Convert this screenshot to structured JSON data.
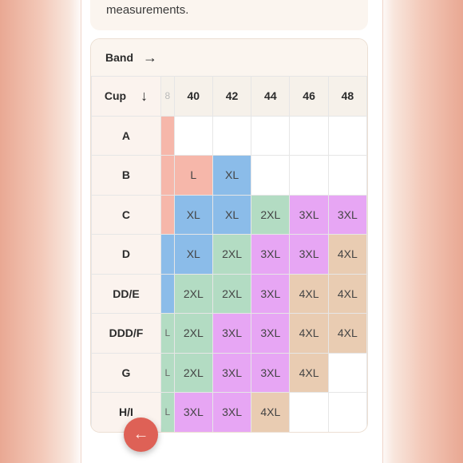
{
  "intro": {
    "text": "measurements."
  },
  "band": {
    "label": "Band",
    "arrow": "→"
  },
  "cup": {
    "label": "Cup",
    "arrow": "↓"
  },
  "columns": [
    "40",
    "42",
    "44",
    "46",
    "48"
  ],
  "cut_column_header": "8",
  "rows": [
    {
      "cup": "A",
      "cut": "",
      "cells": [
        "",
        "",
        "",
        "",
        ""
      ]
    },
    {
      "cup": "B",
      "cut": "",
      "cells": [
        "L",
        "XL",
        "",
        "",
        ""
      ]
    },
    {
      "cup": "C",
      "cut": "",
      "cells": [
        "XL",
        "XL",
        "2XL",
        "3XL",
        "3XL"
      ]
    },
    {
      "cup": "D",
      "cut": "",
      "cells": [
        "XL",
        "2XL",
        "3XL",
        "3XL",
        "4XL"
      ]
    },
    {
      "cup": "DD/E",
      "cut": "",
      "cells": [
        "2XL",
        "2XL",
        "3XL",
        "4XL",
        "4XL"
      ]
    },
    {
      "cup": "DDD/F",
      "cut": "L",
      "cells": [
        "2XL",
        "3XL",
        "3XL",
        "4XL",
        "4XL"
      ]
    },
    {
      "cup": "G",
      "cut": "L",
      "cells": [
        "2XL",
        "3XL",
        "3XL",
        "4XL",
        ""
      ]
    },
    {
      "cup": "H/I",
      "cut": "L",
      "cells": [
        "3XL",
        "3XL",
        "4XL",
        "",
        ""
      ]
    }
  ],
  "cut_colors": [
    "L",
    "L",
    "L",
    "XL",
    "XL",
    "2XL",
    "2XL",
    "2XL"
  ],
  "back_button": {
    "icon": "arrow-left-icon",
    "glyph": "←"
  },
  "colors": {
    "L": "#f6b7aa",
    "XL": "#8bbce9",
    "2XL": "#b3dcc3",
    "3XL": "#e7a6f4",
    "4XL": "#e9ccb2"
  }
}
